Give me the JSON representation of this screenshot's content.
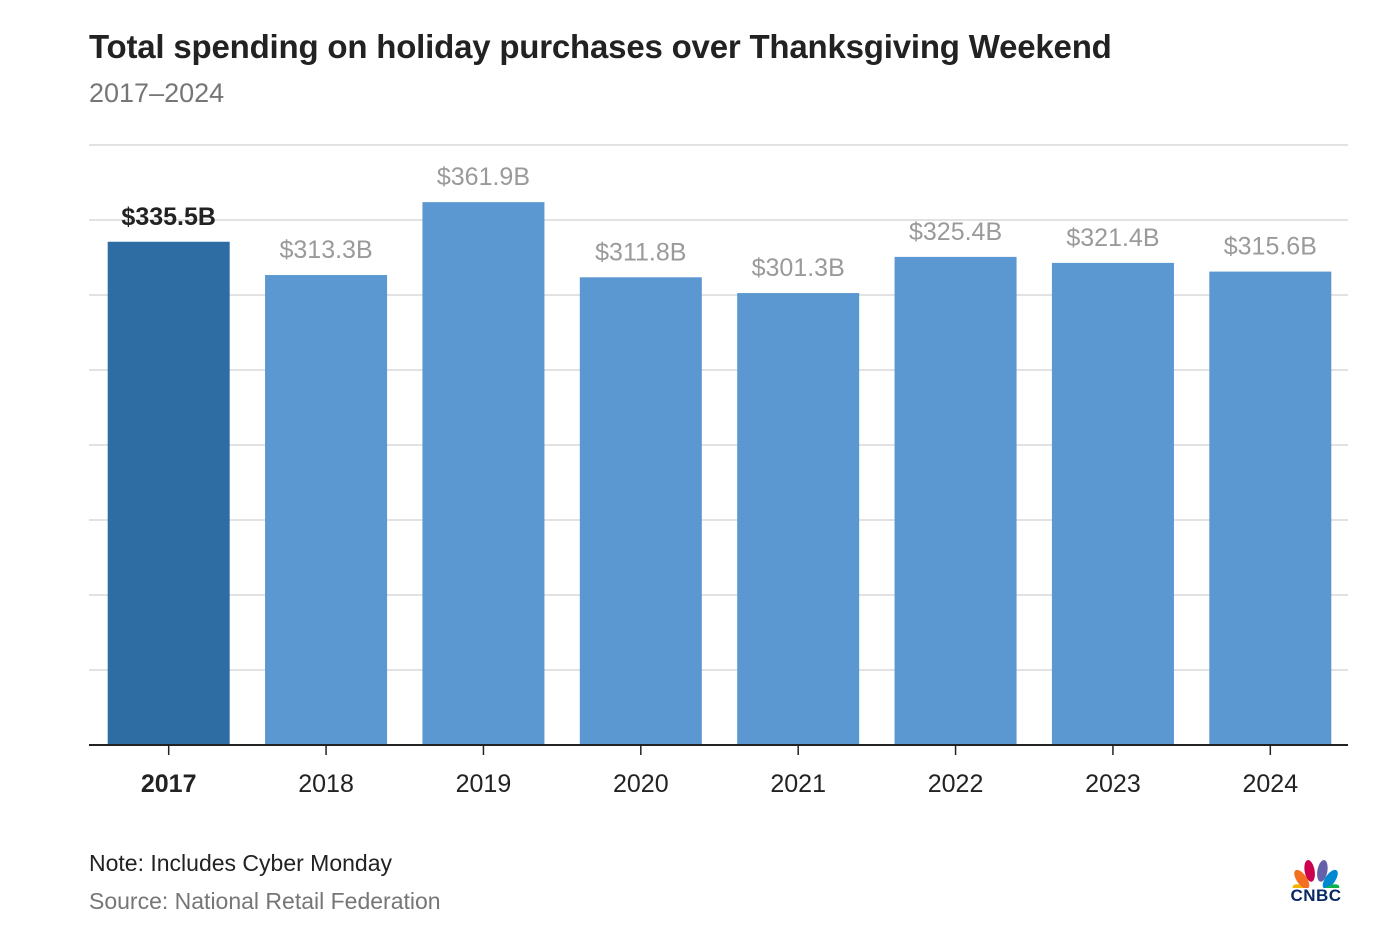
{
  "title": "Total spending on holiday purchases over Thanksgiving Weekend",
  "subtitle": "2017–2024",
  "note": "Note: Includes Cyber Monday",
  "source": "Source: National Retail Federation",
  "logo_text": "CNBC",
  "colors": {
    "highlight_bar": "#2e6da4",
    "bar": "#5b97d1",
    "highlight_label": "#222222",
    "label": "#9a9a9a",
    "grid": "#d9d9d9",
    "axis": "#222222"
  },
  "chart_data": {
    "type": "bar",
    "categories": [
      "2017",
      "2018",
      "2019",
      "2020",
      "2021",
      "2022",
      "2023",
      "2024"
    ],
    "values": [
      335.5,
      313.3,
      361.9,
      311.8,
      301.3,
      325.4,
      321.4,
      315.6
    ],
    "data_labels": [
      "$335.5B",
      "$313.3B",
      "$361.9B",
      "$311.8B",
      "$301.3B",
      "$325.4B",
      "$321.4B",
      "$315.6B"
    ],
    "highlight_category": "2017",
    "ylim": [
      0,
      400
    ],
    "y_tick_labels_shown": false,
    "grid": true,
    "xlabel": "",
    "ylabel": ""
  }
}
